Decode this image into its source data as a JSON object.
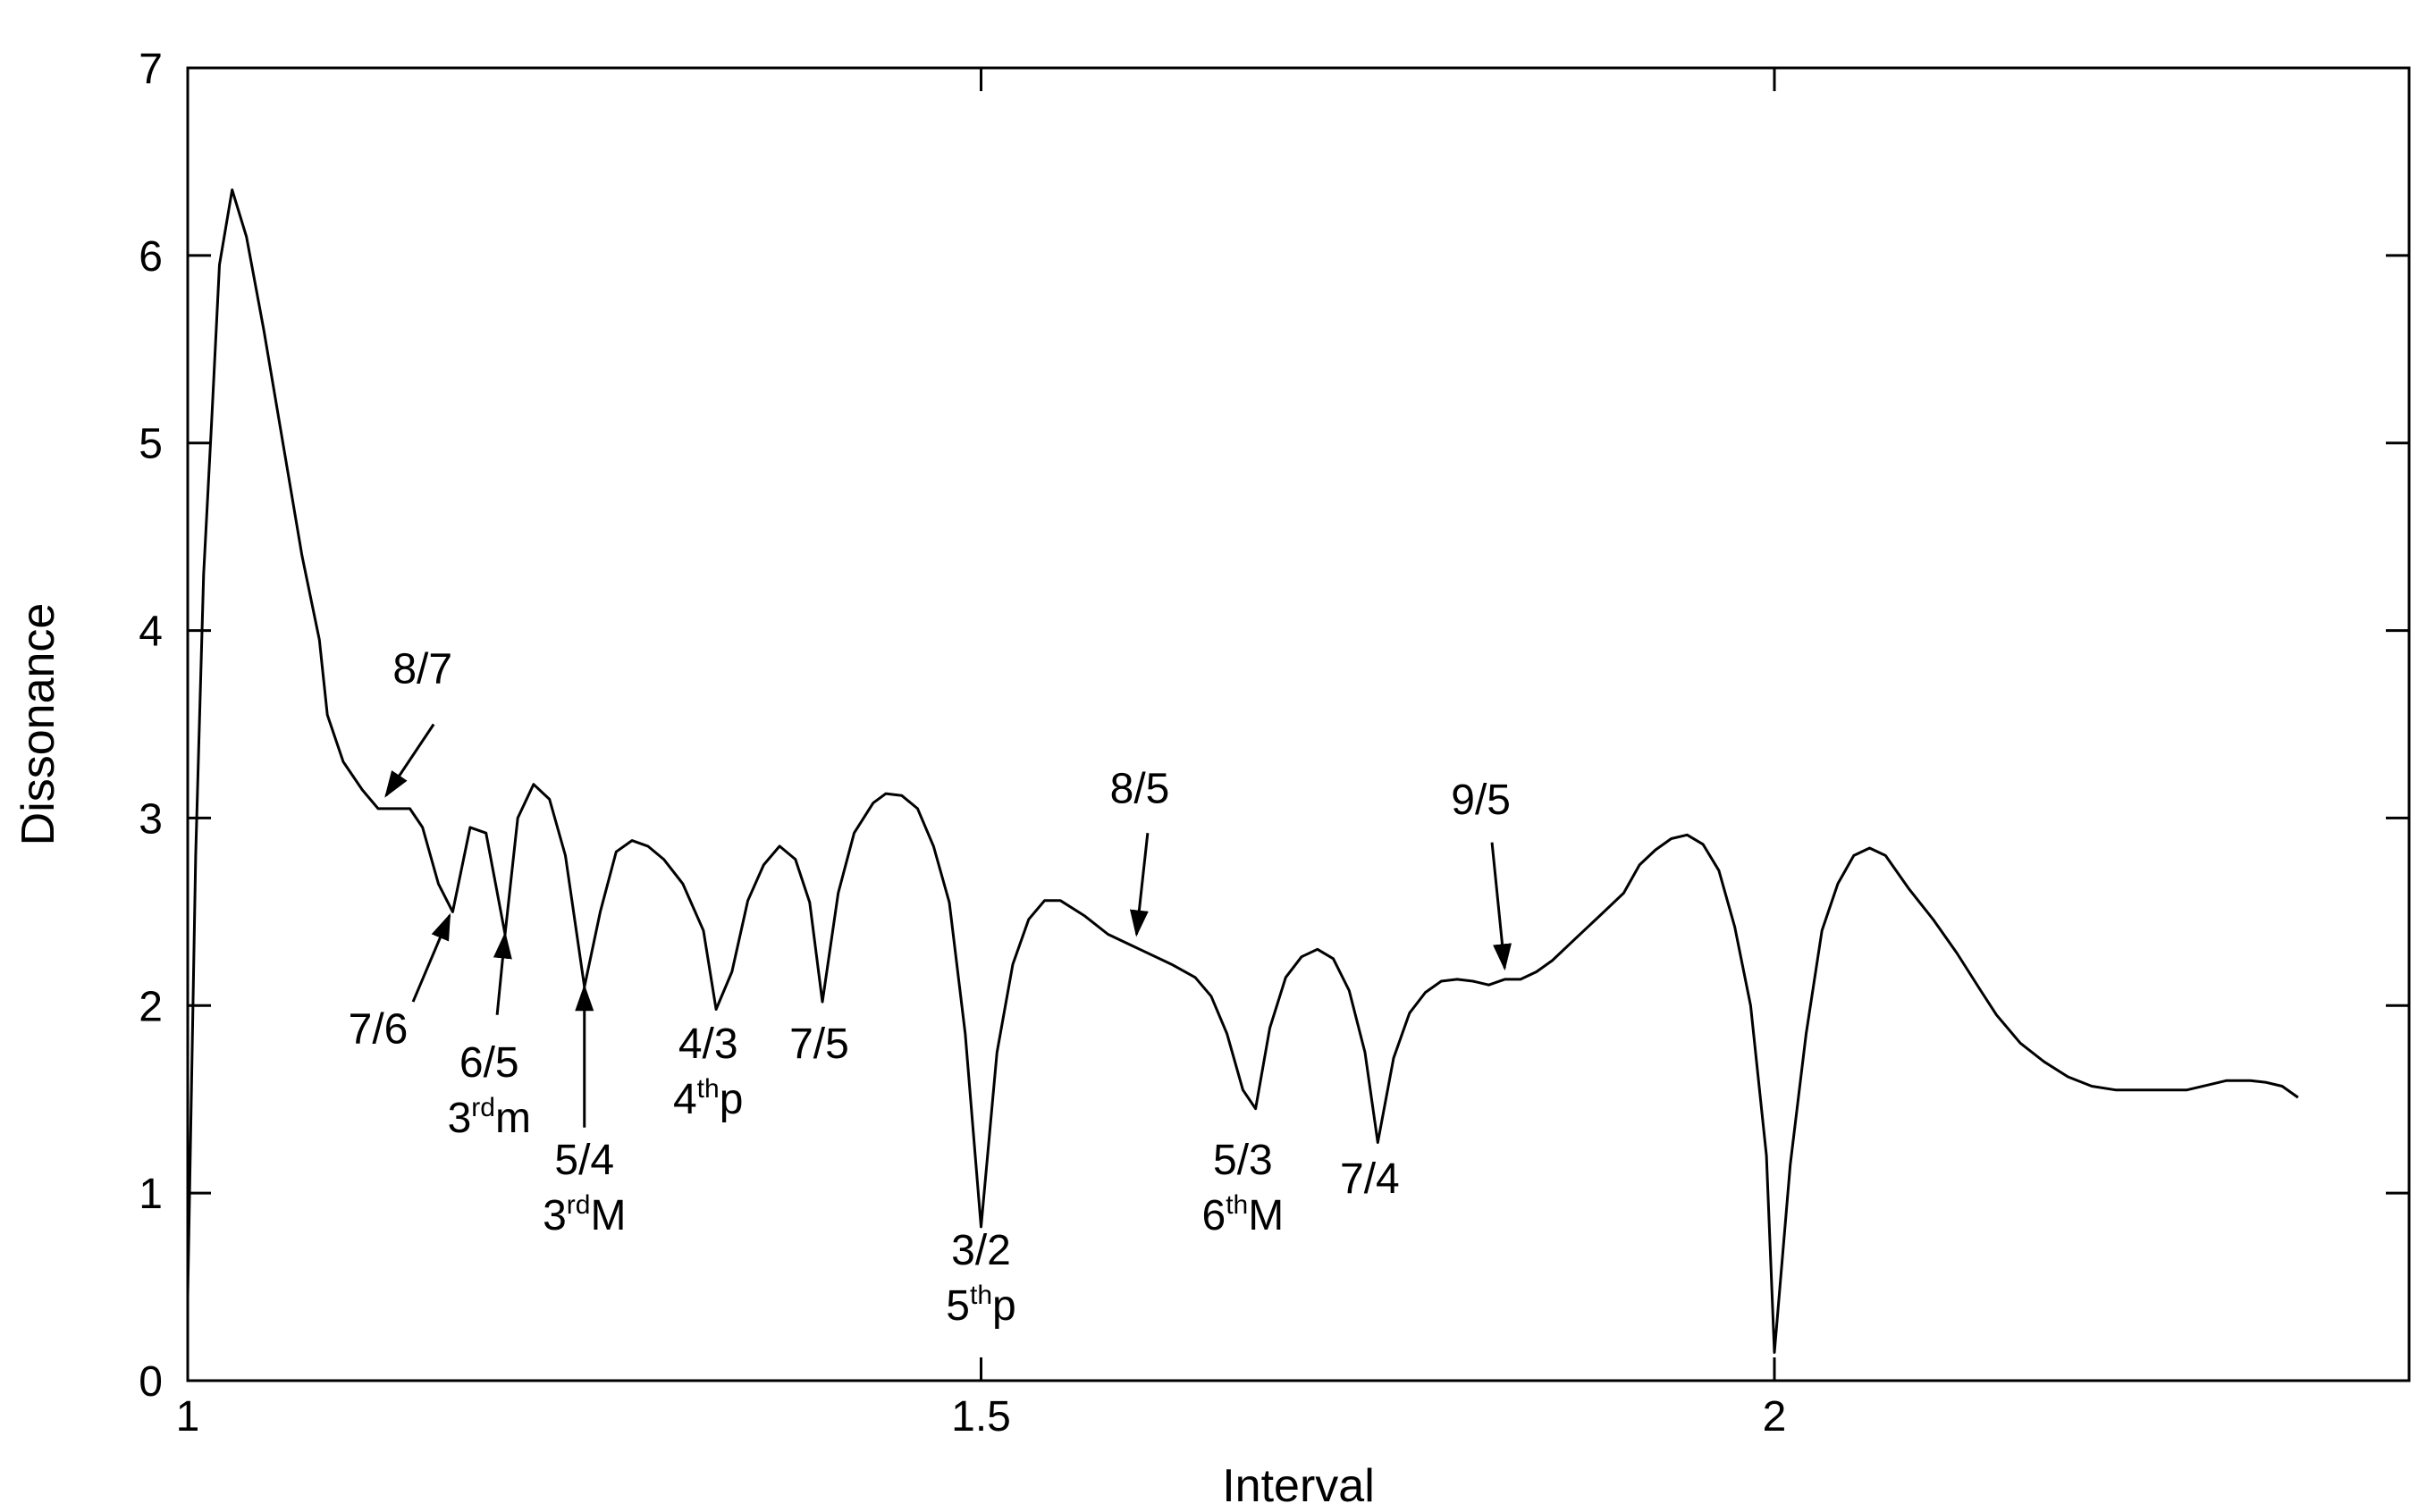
{
  "chart_data": {
    "type": "line",
    "title": "",
    "xlabel": "Interval",
    "ylabel": "Dissonance",
    "xlim": [
      1,
      2.4
    ],
    "ylim": [
      0,
      7
    ],
    "grid": false,
    "legend": "none",
    "x_ticks": [
      {
        "value": 1,
        "label": "1"
      },
      {
        "value": 1.5,
        "label": "1.5"
      },
      {
        "value": 2,
        "label": "2"
      }
    ],
    "y_ticks": [
      {
        "value": 0,
        "label": "0"
      },
      {
        "value": 1,
        "label": "1"
      },
      {
        "value": 2,
        "label": "2"
      },
      {
        "value": 3,
        "label": "3"
      },
      {
        "value": 4,
        "label": "4"
      },
      {
        "value": 5,
        "label": "5"
      },
      {
        "value": 6,
        "label": "6"
      },
      {
        "value": 7,
        "label": "7"
      }
    ],
    "series": [
      {
        "color": "#000000",
        "points": [
          [
            1.0,
            0.45
          ],
          [
            1.005,
            2.8
          ],
          [
            1.01,
            4.3
          ],
          [
            1.015,
            5.1
          ],
          [
            1.02,
            5.95
          ],
          [
            1.028,
            6.35
          ],
          [
            1.037,
            6.1
          ],
          [
            1.048,
            5.6
          ],
          [
            1.06,
            5.0
          ],
          [
            1.072,
            4.4
          ],
          [
            1.083,
            3.95
          ],
          [
            1.088,
            3.55
          ],
          [
            1.098,
            3.3
          ],
          [
            1.11,
            3.15
          ],
          [
            1.12,
            3.05
          ],
          [
            1.13,
            3.05
          ],
          [
            1.14,
            3.05
          ],
          [
            1.148,
            2.95
          ],
          [
            1.158,
            2.65
          ],
          [
            1.167,
            2.5
          ],
          [
            1.178,
            2.95
          ],
          [
            1.188,
            2.92
          ],
          [
            1.2,
            2.38
          ],
          [
            1.208,
            3.0
          ],
          [
            1.218,
            3.18
          ],
          [
            1.228,
            3.1
          ],
          [
            1.238,
            2.8
          ],
          [
            1.25,
            2.1
          ],
          [
            1.26,
            2.5
          ],
          [
            1.27,
            2.82
          ],
          [
            1.28,
            2.88
          ],
          [
            1.29,
            2.85
          ],
          [
            1.3,
            2.78
          ],
          [
            1.312,
            2.65
          ],
          [
            1.325,
            2.4
          ],
          [
            1.333,
            1.98
          ],
          [
            1.343,
            2.18
          ],
          [
            1.353,
            2.56
          ],
          [
            1.363,
            2.75
          ],
          [
            1.373,
            2.85
          ],
          [
            1.383,
            2.78
          ],
          [
            1.392,
            2.55
          ],
          [
            1.4,
            2.02
          ],
          [
            1.41,
            2.6
          ],
          [
            1.42,
            2.92
          ],
          [
            1.432,
            3.08
          ],
          [
            1.44,
            3.13
          ],
          [
            1.45,
            3.12
          ],
          [
            1.46,
            3.05
          ],
          [
            1.47,
            2.85
          ],
          [
            1.48,
            2.55
          ],
          [
            1.49,
            1.85
          ],
          [
            1.5,
            0.82
          ],
          [
            1.51,
            1.75
          ],
          [
            1.52,
            2.22
          ],
          [
            1.53,
            2.46
          ],
          [
            1.54,
            2.56
          ],
          [
            1.55,
            2.56
          ],
          [
            1.565,
            2.48
          ],
          [
            1.58,
            2.38
          ],
          [
            1.6,
            2.3
          ],
          [
            1.62,
            2.22
          ],
          [
            1.635,
            2.15
          ],
          [
            1.645,
            2.05
          ],
          [
            1.655,
            1.85
          ],
          [
            1.665,
            1.55
          ],
          [
            1.673,
            1.45
          ],
          [
            1.682,
            1.88
          ],
          [
            1.692,
            2.15
          ],
          [
            1.702,
            2.26
          ],
          [
            1.712,
            2.3
          ],
          [
            1.722,
            2.25
          ],
          [
            1.732,
            2.08
          ],
          [
            1.742,
            1.75
          ],
          [
            1.75,
            1.27
          ],
          [
            1.76,
            1.72
          ],
          [
            1.77,
            1.96
          ],
          [
            1.78,
            2.07
          ],
          [
            1.79,
            2.13
          ],
          [
            1.8,
            2.14
          ],
          [
            1.81,
            2.13
          ],
          [
            1.82,
            2.11
          ],
          [
            1.83,
            2.14
          ],
          [
            1.84,
            2.14
          ],
          [
            1.85,
            2.18
          ],
          [
            1.86,
            2.24
          ],
          [
            1.875,
            2.36
          ],
          [
            1.89,
            2.48
          ],
          [
            1.905,
            2.6
          ],
          [
            1.915,
            2.75
          ],
          [
            1.925,
            2.83
          ],
          [
            1.935,
            2.89
          ],
          [
            1.945,
            2.91
          ],
          [
            1.955,
            2.86
          ],
          [
            1.965,
            2.72
          ],
          [
            1.975,
            2.42
          ],
          [
            1.985,
            2.0
          ],
          [
            1.995,
            1.2
          ],
          [
            2.0,
            0.15
          ],
          [
            2.01,
            1.15
          ],
          [
            2.02,
            1.85
          ],
          [
            2.03,
            2.4
          ],
          [
            2.04,
            2.65
          ],
          [
            2.05,
            2.8
          ],
          [
            2.06,
            2.84
          ],
          [
            2.07,
            2.8
          ],
          [
            2.085,
            2.62
          ],
          [
            2.1,
            2.46
          ],
          [
            2.115,
            2.28
          ],
          [
            2.13,
            2.08
          ],
          [
            2.14,
            1.95
          ],
          [
            2.155,
            1.8
          ],
          [
            2.17,
            1.7
          ],
          [
            2.185,
            1.62
          ],
          [
            2.2,
            1.57
          ],
          [
            2.215,
            1.55
          ],
          [
            2.23,
            1.55
          ],
          [
            2.245,
            1.55
          ],
          [
            2.26,
            1.55
          ],
          [
            2.275,
            1.58
          ],
          [
            2.285,
            1.6
          ],
          [
            2.3,
            1.6
          ],
          [
            2.31,
            1.59
          ],
          [
            2.32,
            1.57
          ],
          [
            2.33,
            1.51
          ]
        ]
      }
    ],
    "annotations": [
      {
        "lines": [
          {
            "base": "8/7",
            "sup": "",
            "rest": ""
          }
        ],
        "text_at": [
          1.148,
          3.72
        ],
        "arrow_from": [
          1.155,
          3.5
        ],
        "arrow_to": [
          1.125,
          3.12
        ]
      },
      {
        "lines": [
          {
            "base": "7/6",
            "sup": "",
            "rest": ""
          }
        ],
        "text_at": [
          1.12,
          1.8
        ],
        "arrow_from": [
          1.142,
          2.02
        ],
        "arrow_to": [
          1.165,
          2.48
        ]
      },
      {
        "lines": [
          {
            "base": "6/5",
            "sup": "",
            "rest": ""
          },
          {
            "base": "3",
            "sup": "rd",
            "rest": "m"
          }
        ],
        "text_at": [
          1.19,
          1.62
        ],
        "arrow_from": [
          1.195,
          1.95
        ],
        "arrow_to": [
          1.2,
          2.38
        ]
      },
      {
        "lines": [
          {
            "base": "5/4",
            "sup": "",
            "rest": ""
          },
          {
            "base": "3",
            "sup": "rd",
            "rest": "M"
          }
        ],
        "text_at": [
          1.25,
          1.1
        ],
        "arrow_from": [
          1.25,
          1.35
        ],
        "arrow_to": [
          1.25,
          2.1
        ]
      },
      {
        "lines": [
          {
            "base": "4/3",
            "sup": "",
            "rest": ""
          },
          {
            "base": "4",
            "sup": "th",
            "rest": "p"
          }
        ],
        "text_at": [
          1.328,
          1.72
        ],
        "arrow_from": null,
        "arrow_to": null
      },
      {
        "lines": [
          {
            "base": "7/5",
            "sup": "",
            "rest": ""
          }
        ],
        "text_at": [
          1.398,
          1.72
        ],
        "arrow_from": null,
        "arrow_to": null
      },
      {
        "lines": [
          {
            "base": "3/2",
            "sup": "",
            "rest": ""
          },
          {
            "base": "5",
            "sup": "th",
            "rest": "p"
          }
        ],
        "text_at": [
          1.5,
          0.62
        ],
        "arrow_from": null,
        "arrow_to": null
      },
      {
        "lines": [
          {
            "base": "8/5",
            "sup": "",
            "rest": ""
          }
        ],
        "text_at": [
          1.6,
          3.08
        ],
        "arrow_from": [
          1.605,
          2.92
        ],
        "arrow_to": [
          1.598,
          2.38
        ]
      },
      {
        "lines": [
          {
            "base": "5/3",
            "sup": "",
            "rest": ""
          },
          {
            "base": "6",
            "sup": "th",
            "rest": "M"
          }
        ],
        "text_at": [
          1.665,
          1.1
        ],
        "arrow_from": null,
        "arrow_to": null
      },
      {
        "lines": [
          {
            "base": "7/4",
            "sup": "",
            "rest": ""
          }
        ],
        "text_at": [
          1.745,
          1.0
        ],
        "arrow_from": null,
        "arrow_to": null
      },
      {
        "lines": [
          {
            "base": "9/5",
            "sup": "",
            "rest": ""
          }
        ],
        "text_at": [
          1.815,
          3.02
        ],
        "arrow_from": [
          1.822,
          2.87
        ],
        "arrow_to": [
          1.83,
          2.2
        ]
      }
    ]
  }
}
